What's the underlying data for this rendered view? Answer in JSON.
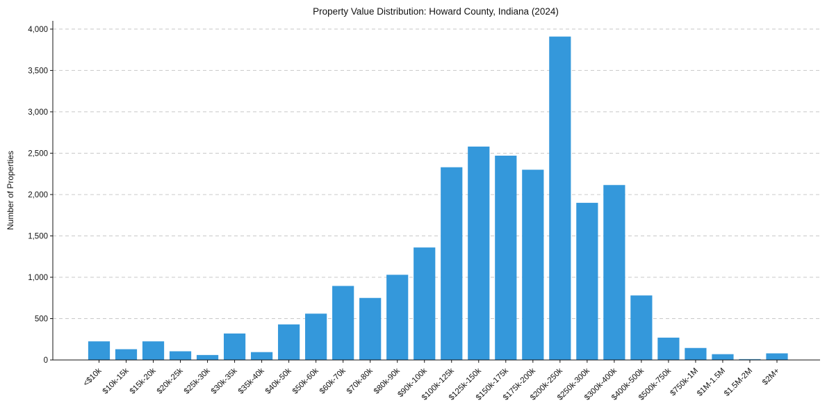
{
  "chart_data": {
    "type": "bar",
    "title": "Property Value Distribution: Howard County, Indiana (2024)",
    "xlabel": "",
    "ylabel": "Number of Properties",
    "ylim": [
      0,
      4100
    ],
    "yticks": [
      0,
      500,
      1000,
      1500,
      2000,
      2500,
      3000,
      3500,
      4000
    ],
    "ytick_labels": [
      "0",
      "500",
      "1,000",
      "1,500",
      "2,000",
      "2,500",
      "3,000",
      "3,500",
      "4,000"
    ],
    "grid": "horizontal dashed",
    "categories": [
      "<$10k",
      "$10k-15k",
      "$15k-20k",
      "$20k-25k",
      "$25k-30k",
      "$30k-35k",
      "$35k-40k",
      "$40k-50k",
      "$50k-60k",
      "$60k-70k",
      "$70k-80k",
      "$80k-90k",
      "$90k-100k",
      "$100k-125k",
      "$125k-150k",
      "$150k-175k",
      "$175k-200k",
      "$200k-250k",
      "$250k-300k",
      "$300k-400k",
      "$400k-500k",
      "$500k-750k",
      "$750k-1M",
      "$1M-1.5M",
      "$1.5M-2M",
      "$2M+"
    ],
    "values": [
      225,
      130,
      225,
      105,
      60,
      320,
      95,
      430,
      560,
      895,
      750,
      1030,
      1360,
      2330,
      2580,
      2470,
      2300,
      3910,
      1900,
      2115,
      780,
      270,
      145,
      70,
      10,
      80
    ],
    "bar_color": "#3498db"
  }
}
